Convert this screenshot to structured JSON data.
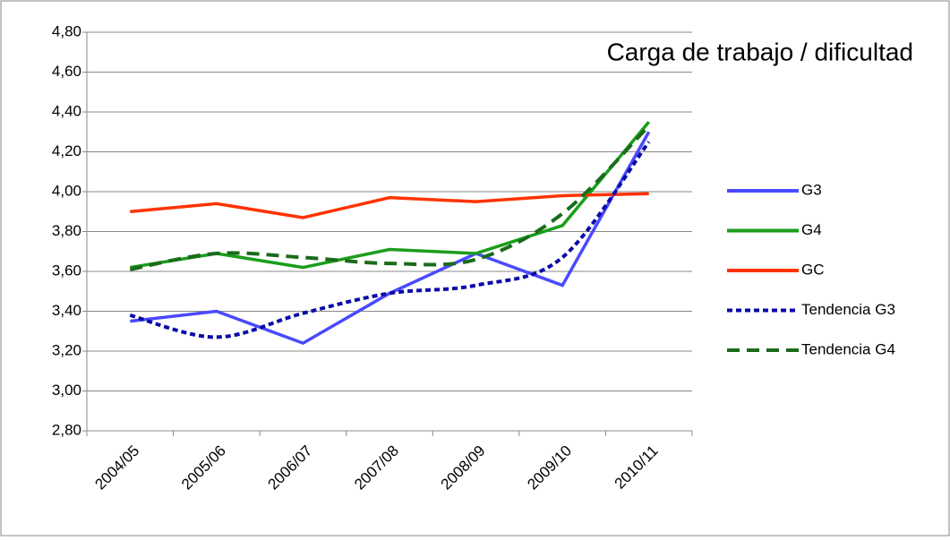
{
  "chart_data": {
    "type": "line",
    "title": "Carga de trabajo / dificultad",
    "categories": [
      "2004/05",
      "2005/06",
      "2006/07",
      "2007/08",
      "2008/09",
      "2009/10",
      "2010/11"
    ],
    "series": [
      {
        "name": "G3",
        "color": "#4a4aff",
        "dash": "solid",
        "values": [
          3.35,
          3.4,
          3.24,
          3.49,
          3.69,
          3.53,
          4.3
        ]
      },
      {
        "name": "G4",
        "color": "#1a9e1a",
        "dash": "solid",
        "values": [
          3.62,
          3.69,
          3.62,
          3.71,
          3.69,
          3.83,
          4.35
        ]
      },
      {
        "name": "GC",
        "color": "#ff3300",
        "dash": "solid",
        "values": [
          3.9,
          3.94,
          3.87,
          3.97,
          3.95,
          3.98,
          3.99
        ]
      },
      {
        "name": "Tendencia G3",
        "color": "#0a0aa8",
        "dash": "dotted",
        "values": [
          3.38,
          3.27,
          3.39,
          3.49,
          3.53,
          3.67,
          4.25
        ]
      },
      {
        "name": "Tendencia G4",
        "color": "#1a6b1a",
        "dash": "dashed",
        "values": [
          3.61,
          3.69,
          3.67,
          3.64,
          3.66,
          3.89,
          4.33
        ]
      }
    ],
    "ylim": [
      2.8,
      4.8
    ],
    "yticks": [
      {
        "value": 2.8,
        "label": "2,80"
      },
      {
        "value": 3.0,
        "label": "3,00"
      },
      {
        "value": 3.2,
        "label": "3,20"
      },
      {
        "value": 3.4,
        "label": "3,40"
      },
      {
        "value": 3.6,
        "label": "3,60"
      },
      {
        "value": 3.8,
        "label": "3,80"
      },
      {
        "value": 4.0,
        "label": "4,00"
      },
      {
        "value": 4.2,
        "label": "4,20"
      },
      {
        "value": 4.4,
        "label": "4,40"
      },
      {
        "value": 4.6,
        "label": "4,60"
      },
      {
        "value": 4.8,
        "label": "4,80"
      }
    ],
    "grid": true,
    "legend": "right"
  }
}
